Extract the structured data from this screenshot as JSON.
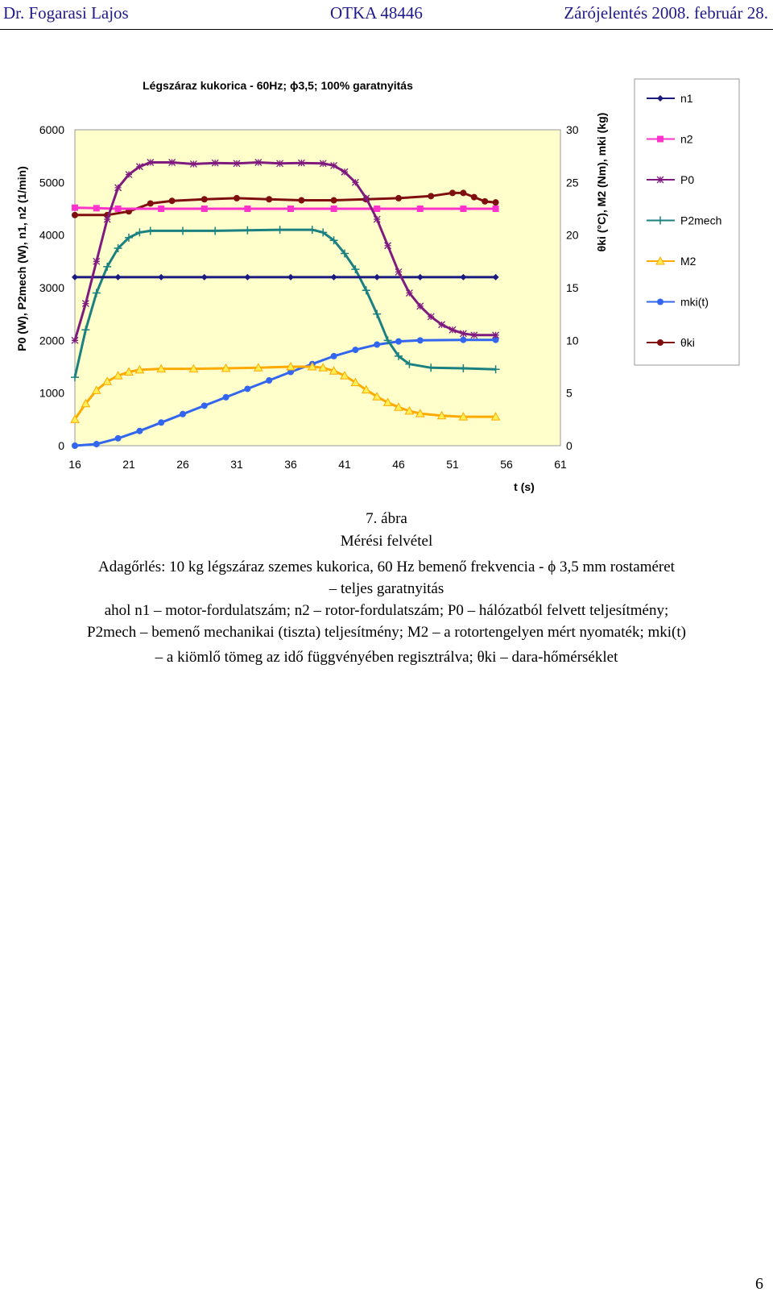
{
  "header": {
    "author": "Dr. Fogarasi Lajos",
    "project": "OTKA 48446",
    "report": "Zárójelentés 2008. február 28."
  },
  "chart_data": {
    "type": "line",
    "title": "Légszáraz kukorica - 60Hz; ϕ3,5; 100% garatnyitás",
    "xlabel": "t (s)",
    "ylabel_left": "P0 (W), P2mech (W), n1, n2 (1/min)",
    "ylabel_right": "θki (°C), M2 (Nm), mki (kg)",
    "xlim": [
      16,
      61
    ],
    "ylim_left": [
      0,
      6000
    ],
    "ylim_right": [
      0,
      30
    ],
    "xticks": [
      "16",
      "21",
      "26",
      "31",
      "36",
      "41",
      "46",
      "51",
      "56",
      "61"
    ],
    "yticks_left": [
      "0",
      "1000",
      "2000",
      "3000",
      "4000",
      "5000",
      "6000"
    ],
    "yticks_right": [
      "0",
      "5",
      "10",
      "15",
      "20",
      "25",
      "30"
    ],
    "plot_background": "#ffffcc",
    "legend_position": "right",
    "series": [
      {
        "name": "n1",
        "axis": "left",
        "color": "#1a1a80",
        "marker": "diamond",
        "points": [
          [
            16,
            3200
          ],
          [
            20,
            3200
          ],
          [
            24,
            3200
          ],
          [
            28,
            3200
          ],
          [
            32,
            3200
          ],
          [
            36,
            3200
          ],
          [
            40,
            3200
          ],
          [
            44,
            3200
          ],
          [
            48,
            3200
          ],
          [
            52,
            3200
          ],
          [
            55,
            3200
          ]
        ]
      },
      {
        "name": "n2",
        "axis": "left",
        "color": "#ff33cc",
        "marker": "square",
        "points": [
          [
            16,
            4520
          ],
          [
            18,
            4510
          ],
          [
            20,
            4500
          ],
          [
            24,
            4500
          ],
          [
            28,
            4500
          ],
          [
            32,
            4500
          ],
          [
            36,
            4500
          ],
          [
            40,
            4500
          ],
          [
            44,
            4500
          ],
          [
            48,
            4500
          ],
          [
            52,
            4500
          ],
          [
            55,
            4500
          ]
        ]
      },
      {
        "name": "P0",
        "axis": "left",
        "color": "#7f1a7f",
        "marker": "star",
        "points": [
          [
            16,
            2000
          ],
          [
            17,
            2700
          ],
          [
            18,
            3500
          ],
          [
            19,
            4300
          ],
          [
            20,
            4900
          ],
          [
            21,
            5150
          ],
          [
            22,
            5300
          ],
          [
            23,
            5380
          ],
          [
            25,
            5380
          ],
          [
            27,
            5350
          ],
          [
            29,
            5370
          ],
          [
            31,
            5360
          ],
          [
            33,
            5380
          ],
          [
            35,
            5360
          ],
          [
            37,
            5370
          ],
          [
            39,
            5360
          ],
          [
            40,
            5320
          ],
          [
            41,
            5200
          ],
          [
            42,
            5000
          ],
          [
            43,
            4700
          ],
          [
            44,
            4300
          ],
          [
            45,
            3800
          ],
          [
            46,
            3300
          ],
          [
            47,
            2900
          ],
          [
            48,
            2650
          ],
          [
            49,
            2450
          ],
          [
            50,
            2300
          ],
          [
            51,
            2200
          ],
          [
            52,
            2130
          ],
          [
            53,
            2100
          ],
          [
            55,
            2100
          ]
        ]
      },
      {
        "name": "P2mech",
        "axis": "left",
        "color": "#1a8080",
        "marker": "plus",
        "points": [
          [
            16,
            1300
          ],
          [
            17,
            2200
          ],
          [
            18,
            2900
          ],
          [
            19,
            3400
          ],
          [
            20,
            3750
          ],
          [
            21,
            3950
          ],
          [
            22,
            4050
          ],
          [
            23,
            4080
          ],
          [
            26,
            4080
          ],
          [
            29,
            4080
          ],
          [
            32,
            4090
          ],
          [
            35,
            4100
          ],
          [
            38,
            4100
          ],
          [
            39,
            4050
          ],
          [
            40,
            3900
          ],
          [
            41,
            3650
          ],
          [
            42,
            3350
          ],
          [
            43,
            2950
          ],
          [
            44,
            2500
          ],
          [
            45,
            2000
          ],
          [
            46,
            1700
          ],
          [
            47,
            1550
          ],
          [
            49,
            1480
          ],
          [
            52,
            1470
          ],
          [
            55,
            1450
          ]
        ]
      },
      {
        "name": "M2",
        "axis": "left",
        "color": "#ffaa00",
        "marker": "triangle",
        "points": [
          [
            16,
            500
          ],
          [
            17,
            800
          ],
          [
            18,
            1050
          ],
          [
            19,
            1220
          ],
          [
            20,
            1330
          ],
          [
            21,
            1400
          ],
          [
            22,
            1440
          ],
          [
            24,
            1460
          ],
          [
            27,
            1460
          ],
          [
            30,
            1470
          ],
          [
            33,
            1480
          ],
          [
            36,
            1500
          ],
          [
            38,
            1500
          ],
          [
            39,
            1480
          ],
          [
            40,
            1420
          ],
          [
            41,
            1330
          ],
          [
            42,
            1200
          ],
          [
            43,
            1060
          ],
          [
            44,
            930
          ],
          [
            45,
            820
          ],
          [
            46,
            730
          ],
          [
            47,
            660
          ],
          [
            48,
            610
          ],
          [
            50,
            570
          ],
          [
            52,
            550
          ],
          [
            55,
            550
          ]
        ]
      },
      {
        "name": "mki(t)",
        "axis": "left",
        "color": "#3366ee",
        "marker": "circle",
        "points": [
          [
            16,
            0
          ],
          [
            18,
            30
          ],
          [
            20,
            140
          ],
          [
            22,
            280
          ],
          [
            24,
            440
          ],
          [
            26,
            600
          ],
          [
            28,
            760
          ],
          [
            30,
            920
          ],
          [
            32,
            1080
          ],
          [
            34,
            1240
          ],
          [
            36,
            1400
          ],
          [
            38,
            1550
          ],
          [
            40,
            1700
          ],
          [
            42,
            1820
          ],
          [
            44,
            1920
          ],
          [
            46,
            1980
          ],
          [
            48,
            2000
          ],
          [
            52,
            2010
          ],
          [
            55,
            2010
          ]
        ]
      },
      {
        "name": "θki",
        "axis": "left",
        "color": "#7f0f0f",
        "marker": "circle",
        "points": [
          [
            16,
            4380
          ],
          [
            19,
            4380
          ],
          [
            21,
            4450
          ],
          [
            23,
            4600
          ],
          [
            25,
            4650
          ],
          [
            28,
            4680
          ],
          [
            31,
            4700
          ],
          [
            34,
            4680
          ],
          [
            37,
            4660
          ],
          [
            40,
            4660
          ],
          [
            43,
            4680
          ],
          [
            46,
            4700
          ],
          [
            49,
            4740
          ],
          [
            51,
            4800
          ],
          [
            52,
            4800
          ],
          [
            53,
            4720
          ],
          [
            54,
            4640
          ],
          [
            55,
            4620
          ]
        ]
      }
    ]
  },
  "caption": {
    "figure_number": "7. ábra",
    "figure_title": "Mérési felvétel",
    "line1": "Adagőrlés: 10 kg légszáraz szemes kukorica, 60 Hz bemenő frekvencia - ϕ 3,5 mm rostaméret",
    "line2": "– teljes garatnyitás",
    "line3": "ahol n1 – motor-fordulatszám; n2 – rotor-fordulatszám; P0 – hálózatból felvett teljesítmény;",
    "line4": "P2mech – bemenő mechanikai (tiszta) teljesítmény; M2 – a rotortengelyen mért nyomaték; mki(t)",
    "line5": "– a kiömlő tömeg az idő függvényében regisztrálva; θki – dara-hőmérséklet"
  },
  "page_number": "6"
}
